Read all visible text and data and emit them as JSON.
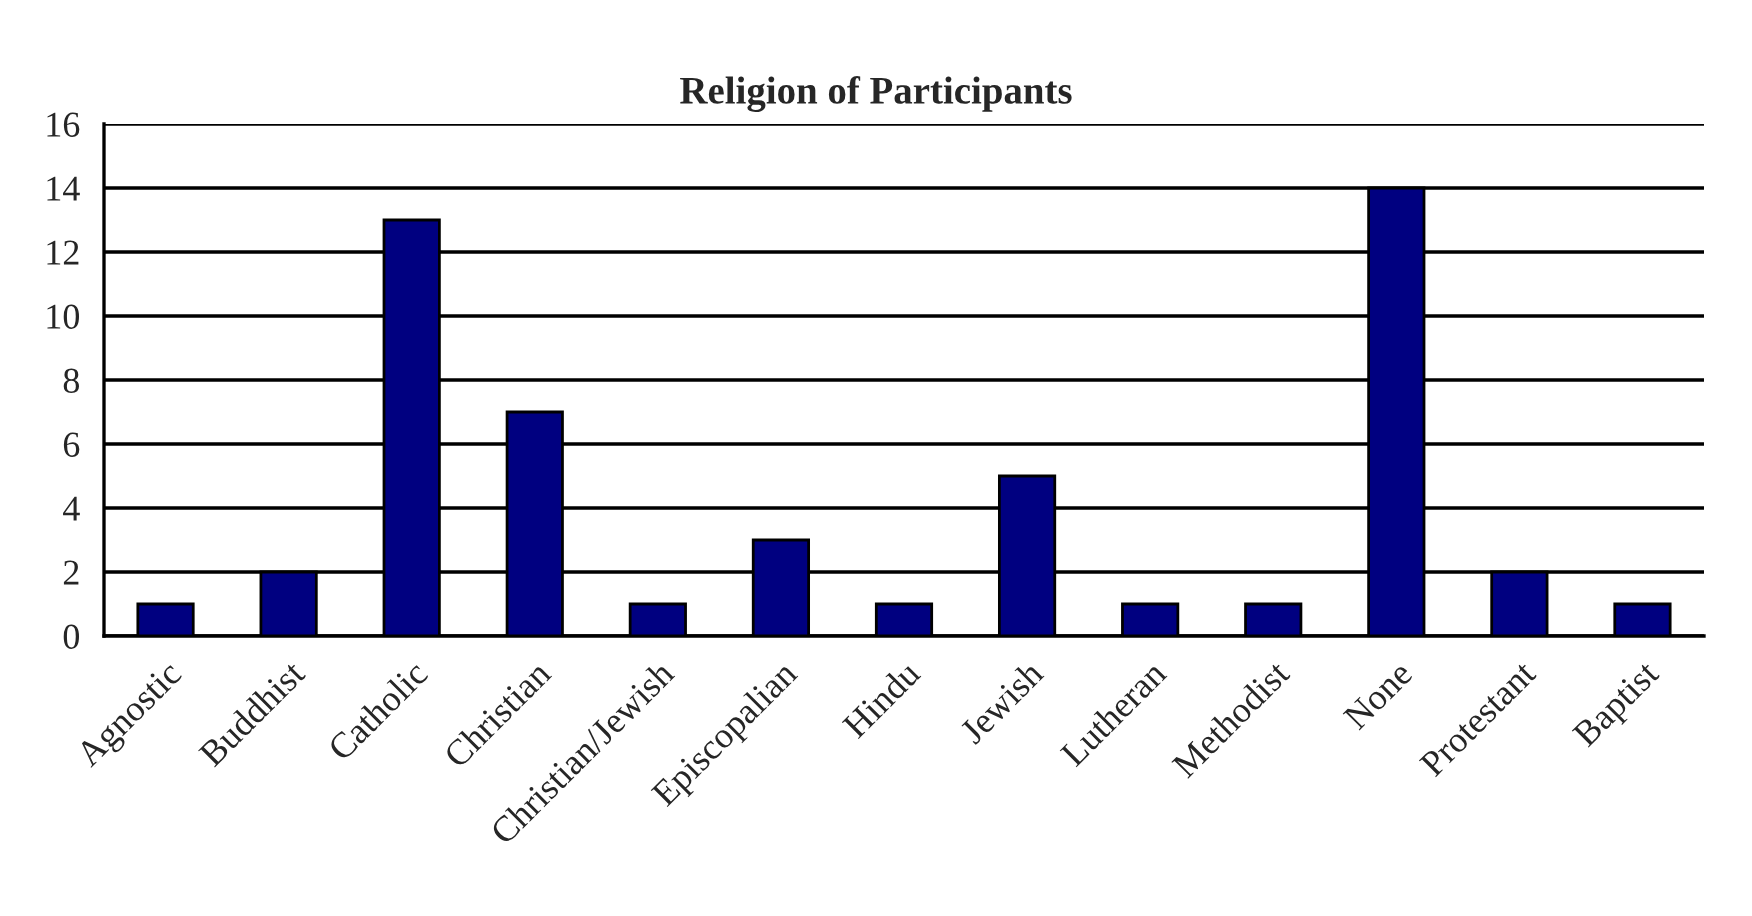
{
  "chart_data": {
    "type": "bar",
    "title": "Religion of Participants",
    "categories": [
      "Agnostic",
      "Buddhist",
      "Catholic",
      "Christian",
      "Christian/Jewish",
      "Episcopalian",
      "Hindu",
      "Jewish",
      "Lutheran",
      "Methodist",
      "None",
      "Protestant",
      "Baptist"
    ],
    "values": [
      1,
      2,
      13,
      7,
      1,
      3,
      1,
      5,
      1,
      1,
      14,
      2,
      1
    ],
    "color": "#000080",
    "ylim": [
      0,
      16
    ],
    "yticks": [
      0,
      2,
      4,
      6,
      8,
      10,
      12,
      14,
      16
    ],
    "grid": "y",
    "legend": false
  }
}
